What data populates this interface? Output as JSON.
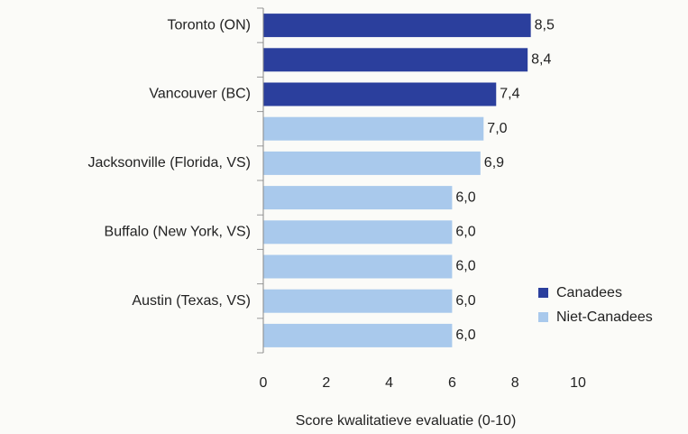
{
  "chart_data": {
    "type": "bar",
    "orientation": "horizontal",
    "categories": [
      "Toronto (ON)",
      null,
      "Vancouver (BC)",
      null,
      "Jacksonville (Florida, VS)",
      null,
      "Buffalo (New York, VS)",
      null,
      "Austin (Texas, VS)",
      null
    ],
    "series": [
      {
        "name": "Canadees",
        "color": "#2b3f9d",
        "values": [
          8.5,
          8.4,
          7.4,
          null,
          null,
          null,
          null,
          null,
          null,
          null
        ],
        "value_labels": [
          "8,5",
          "8,4",
          "7,4",
          null,
          null,
          null,
          null,
          null,
          null,
          null
        ]
      },
      {
        "name": "Niet-Canadees",
        "color": "#a9c9ec",
        "values": [
          null,
          null,
          null,
          7.0,
          6.9,
          6.0,
          6.0,
          6.0,
          6.0,
          6.0
        ],
        "value_labels": [
          null,
          null,
          null,
          "7,0",
          "6,9",
          "6,0",
          "6,0",
          "6,0",
          "6,0",
          "6,0"
        ]
      }
    ],
    "xlabel": "Score kwalitatieve evaluatie (0-10)",
    "xlim": [
      0,
      10
    ],
    "xticks": [
      0,
      2,
      4,
      6,
      8,
      10
    ],
    "legend": "lower right"
  }
}
